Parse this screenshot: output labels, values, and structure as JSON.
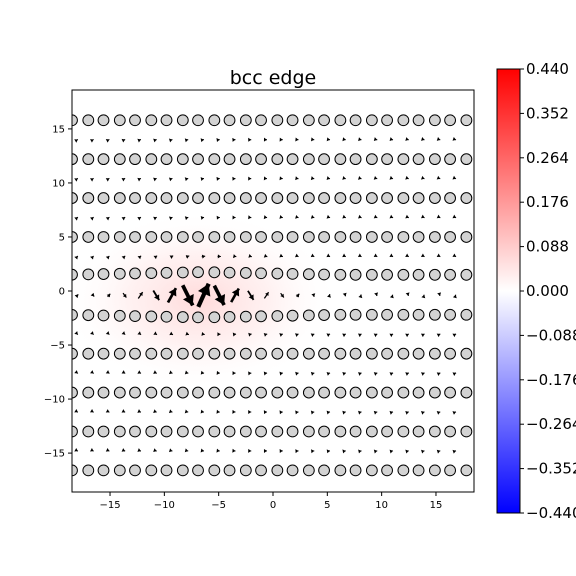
{
  "chart_data": {
    "type": "scatter",
    "title": "bcc edge",
    "xlabel": "",
    "ylabel": "",
    "xlim": [
      -18.5,
      18.5
    ],
    "ylim": [
      -18.6,
      18.6
    ],
    "x_ticks": [
      -15,
      -10,
      -5,
      0,
      5,
      10,
      15
    ],
    "x_tick_labels": [
      "−15",
      "−10",
      "−5",
      "0",
      "5",
      "10",
      "15"
    ],
    "y_ticks": [
      -15,
      -10,
      -5,
      0,
      5,
      10,
      15
    ],
    "y_tick_labels": [
      "−15",
      "−10",
      "−5",
      "0",
      "5",
      "10",
      "15"
    ],
    "colorbar": {
      "cmap": "bwr",
      "range": [
        -0.44,
        0.44
      ],
      "ticks": [
        0.44,
        0.352,
        0.264,
        0.176,
        0.088,
        0.0,
        -0.088,
        -0.176,
        -0.264,
        -0.352,
        -0.44
      ],
      "tick_labels": [
        "0.440",
        "0.352",
        "0.264",
        "0.176",
        "0.088",
        "0.000",
        "−0.088",
        "−0.176",
        "−0.264",
        "−0.352",
        "−0.440"
      ],
      "colors": {
        "max": "#ff0000",
        "mid": "#ffffff",
        "min": "#0000ff"
      }
    },
    "atom_rows": [
      {
        "y": 15.8,
        "x": [
          -18.5,
          -17.0,
          -15.6,
          -14.1,
          -12.7,
          -11.2,
          -9.8,
          -8.3,
          -6.9,
          -5.4,
          -4.0,
          -2.5,
          -1.1,
          0.4,
          1.8,
          3.3,
          4.7,
          6.2,
          7.6,
          9.1,
          10.5,
          12.0,
          13.4,
          14.9,
          16.3,
          17.8
        ]
      },
      {
        "y": 12.2,
        "x": [
          -18.5,
          -17.0,
          -15.6,
          -14.1,
          -12.7,
          -11.2,
          -9.8,
          -8.3,
          -6.9,
          -5.4,
          -4.0,
          -2.5,
          -1.1,
          0.4,
          1.8,
          3.3,
          4.7,
          6.2,
          7.6,
          9.1,
          10.5,
          12.0,
          13.4,
          14.9,
          16.3,
          17.8
        ]
      },
      {
        "y": 8.6,
        "x": [
          -18.5,
          -17.0,
          -15.6,
          -14.1,
          -12.7,
          -11.2,
          -9.8,
          -8.3,
          -6.9,
          -5.4,
          -4.0,
          -2.5,
          -1.1,
          0.4,
          1.8,
          3.3,
          4.7,
          6.2,
          7.6,
          9.1,
          10.5,
          12.0,
          13.4,
          14.9,
          16.3,
          17.8
        ]
      },
      {
        "y": 5.0,
        "x": [
          -18.5,
          -17.0,
          -15.6,
          -14.1,
          -12.7,
          -11.2,
          -9.8,
          -8.3,
          -6.9,
          -5.4,
          -4.0,
          -2.5,
          -1.1,
          0.4,
          1.8,
          3.3,
          4.7,
          6.2,
          7.6,
          9.1,
          10.5,
          12.0,
          13.4,
          14.9,
          16.3,
          17.8
        ]
      },
      {
        "y": 1.5,
        "x": [
          -18.5,
          -17.0,
          -15.6,
          -14.1,
          -12.7,
          -11.2,
          -9.8,
          -8.3,
          -6.9,
          -5.4,
          -4.0,
          -2.5,
          -1.1,
          0.4,
          1.8,
          3.3,
          4.7,
          6.2,
          7.6,
          9.1,
          10.5,
          12.0,
          13.4,
          14.9,
          16.3,
          17.8
        ]
      },
      {
        "y": -2.2,
        "x": [
          -18.5,
          -17.0,
          -15.6,
          -14.1,
          -12.7,
          -11.2,
          -9.8,
          -8.3,
          -6.9,
          -5.4,
          -4.0,
          -2.5,
          -1.1,
          0.4,
          1.8,
          3.3,
          4.7,
          6.2,
          7.6,
          9.1,
          10.5,
          12.0,
          13.4,
          14.9,
          16.3,
          17.8
        ]
      },
      {
        "y": -5.8,
        "x": [
          -18.5,
          -17.0,
          -15.6,
          -14.1,
          -12.7,
          -11.2,
          -9.8,
          -8.3,
          -6.9,
          -5.4,
          -4.0,
          -2.5,
          -1.1,
          0.4,
          1.8,
          3.3,
          4.7,
          6.2,
          7.6,
          9.1,
          10.5,
          12.0,
          13.4,
          14.9,
          16.3,
          17.8
        ]
      },
      {
        "y": -9.4,
        "x": [
          -18.5,
          -17.0,
          -15.6,
          -14.1,
          -12.7,
          -11.2,
          -9.8,
          -8.3,
          -6.9,
          -5.4,
          -4.0,
          -2.5,
          -1.1,
          0.4,
          1.8,
          3.3,
          4.7,
          6.2,
          7.6,
          9.1,
          10.5,
          12.0,
          13.4,
          14.9,
          16.3,
          17.8
        ]
      },
      {
        "y": -13.0,
        "x": [
          -18.5,
          -17.0,
          -15.6,
          -14.1,
          -12.7,
          -11.2,
          -9.8,
          -8.3,
          -6.9,
          -5.4,
          -4.0,
          -2.5,
          -1.1,
          0.4,
          1.8,
          3.3,
          4.7,
          6.2,
          7.6,
          9.1,
          10.5,
          12.0,
          13.4,
          14.9,
          16.3,
          17.8
        ]
      },
      {
        "y": -16.6,
        "x": [
          -18.5,
          -17.0,
          -15.6,
          -14.1,
          -12.7,
          -11.2,
          -9.8,
          -8.3,
          -6.9,
          -5.4,
          -4.0,
          -2.5,
          -1.1,
          0.4,
          1.8,
          3.3,
          4.7,
          6.2,
          7.6,
          9.1,
          10.5,
          12.0,
          13.4,
          14.9,
          16.3,
          17.8
        ]
      }
    ],
    "vector_field": {
      "core_x": -6.5,
      "core_y": 0.0,
      "rows_y": [
        14.0,
        10.4,
        6.8,
        3.2,
        -0.4,
        -4.0,
        -7.6,
        -11.2,
        -14.8
      ]
    }
  }
}
